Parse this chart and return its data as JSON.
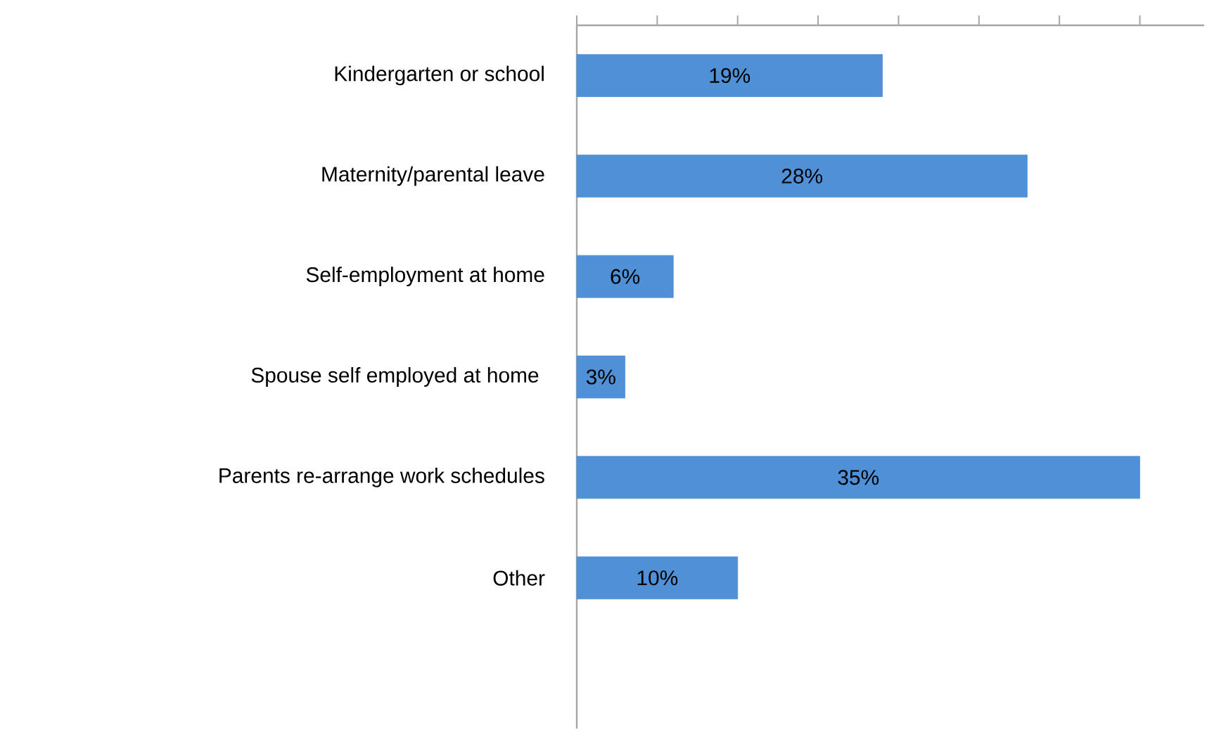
{
  "chart_data": {
    "type": "bar",
    "orientation": "horizontal",
    "categories": [
      "Kindergarten or school",
      "Maternity/parental leave",
      "Self-employment at home",
      "Spouse self employed at home ",
      "Parents re-arrange work schedules",
      "Other",
      null
    ],
    "values": [
      19,
      28,
      6,
      3,
      35,
      10,
      null
    ],
    "value_labels": [
      "19%",
      "28%",
      "6%",
      "3%",
      "35%",
      "10%",
      null
    ],
    "color": "#4f90d6",
    "xlim": [
      0,
      39
    ],
    "xticks": [
      {
        "value": 0,
        "label": null
      },
      {
        "value": 5,
        "label": null
      },
      {
        "value": 10,
        "label": null
      },
      {
        "value": 15,
        "label": null
      },
      {
        "value": 20,
        "label": null
      },
      {
        "value": 25,
        "label": null
      },
      {
        "value": 30,
        "label": null
      },
      {
        "value": 35,
        "label": null
      }
    ],
    "tick_labels": "y"
  }
}
